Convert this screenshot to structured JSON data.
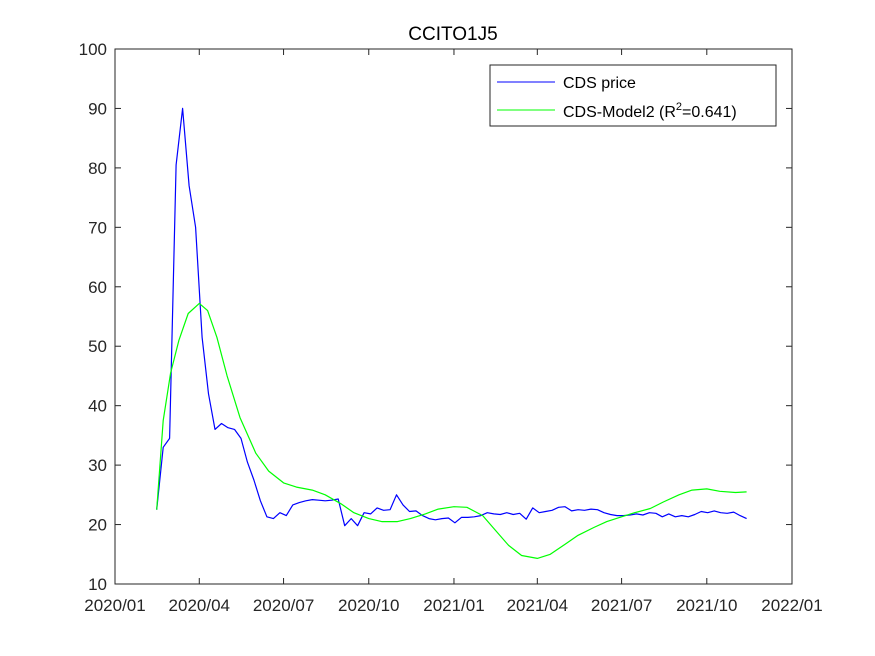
{
  "chart_data": {
    "type": "line",
    "title": "CCITO1J5",
    "xlabel": "",
    "ylabel": "",
    "xlim": [
      "2020-01-01",
      "2022-01-01"
    ],
    "ylim": [
      10,
      100
    ],
    "yticks": [
      10,
      20,
      30,
      40,
      50,
      60,
      70,
      80,
      90,
      100
    ],
    "xticks": [
      {
        "date": "2020-01-01",
        "label": "2020/01"
      },
      {
        "date": "2020-04-01",
        "label": "2020/04"
      },
      {
        "date": "2020-07-01",
        "label": "2020/07"
      },
      {
        "date": "2020-10-01",
        "label": "2020/10"
      },
      {
        "date": "2021-01-01",
        "label": "2021/01"
      },
      {
        "date": "2021-04-01",
        "label": "2021/04"
      },
      {
        "date": "2021-07-01",
        "label": "2021/07"
      },
      {
        "date": "2021-10-01",
        "label": "2021/10"
      },
      {
        "date": "2022-01-01",
        "label": "2022/01"
      }
    ],
    "grid": false,
    "legend_position": "top-right",
    "legend": {
      "entry1": "CDS price",
      "entry2_prefix": "CDS-Model2 (R",
      "entry2_sup": "2",
      "entry2_suffix": "=0.641)"
    },
    "series": [
      {
        "name": "CDS price",
        "color": "#0000ff",
        "points": [
          [
            "2020-02-15",
            22.5
          ],
          [
            "2020-02-22",
            33.0
          ],
          [
            "2020-02-29",
            34.5
          ],
          [
            "2020-03-07",
            80.5
          ],
          [
            "2020-03-14",
            90.0
          ],
          [
            "2020-03-21",
            77.0
          ],
          [
            "2020-03-28",
            70.0
          ],
          [
            "2020-04-04",
            51.5
          ],
          [
            "2020-04-11",
            42.0
          ],
          [
            "2020-04-18",
            36.0
          ],
          [
            "2020-04-25",
            37.0
          ],
          [
            "2020-05-02",
            36.3
          ],
          [
            "2020-05-09",
            36.0
          ],
          [
            "2020-05-16",
            34.5
          ],
          [
            "2020-05-23",
            30.5
          ],
          [
            "2020-05-30",
            27.5
          ],
          [
            "2020-06-06",
            24.0
          ],
          [
            "2020-06-13",
            21.3
          ],
          [
            "2020-06-20",
            21.0
          ],
          [
            "2020-06-27",
            22.0
          ],
          [
            "2020-07-04",
            21.5
          ],
          [
            "2020-07-11",
            23.3
          ],
          [
            "2020-07-18",
            23.7
          ],
          [
            "2020-07-25",
            24.0
          ],
          [
            "2020-08-01",
            24.2
          ],
          [
            "2020-08-08",
            24.1
          ],
          [
            "2020-08-15",
            24.0
          ],
          [
            "2020-08-22",
            24.1
          ],
          [
            "2020-08-29",
            24.3
          ],
          [
            "2020-09-05",
            19.8
          ],
          [
            "2020-09-12",
            21.0
          ],
          [
            "2020-09-19",
            19.8
          ],
          [
            "2020-09-26",
            22.0
          ],
          [
            "2020-10-03",
            21.8
          ],
          [
            "2020-10-10",
            22.8
          ],
          [
            "2020-10-17",
            22.4
          ],
          [
            "2020-10-24",
            22.5
          ],
          [
            "2020-10-31",
            25.0
          ],
          [
            "2020-11-07",
            23.3
          ],
          [
            "2020-11-14",
            22.2
          ],
          [
            "2020-11-21",
            22.3
          ],
          [
            "2020-11-28",
            21.5
          ],
          [
            "2020-12-05",
            21.0
          ],
          [
            "2020-12-12",
            20.8
          ],
          [
            "2020-12-19",
            21.0
          ],
          [
            "2020-12-26",
            21.1
          ],
          [
            "2021-01-02",
            20.3
          ],
          [
            "2021-01-09",
            21.2
          ],
          [
            "2021-01-16",
            21.2
          ],
          [
            "2021-01-23",
            21.3
          ],
          [
            "2021-01-30",
            21.5
          ],
          [
            "2021-02-06",
            22.0
          ],
          [
            "2021-02-13",
            21.8
          ],
          [
            "2021-02-20",
            21.7
          ],
          [
            "2021-02-27",
            22.0
          ],
          [
            "2021-03-06",
            21.7
          ],
          [
            "2021-03-13",
            21.9
          ],
          [
            "2021-03-20",
            20.9
          ],
          [
            "2021-03-27",
            22.8
          ],
          [
            "2021-04-03",
            22.0
          ],
          [
            "2021-04-10",
            22.2
          ],
          [
            "2021-04-17",
            22.4
          ],
          [
            "2021-04-24",
            22.9
          ],
          [
            "2021-05-01",
            23.0
          ],
          [
            "2021-05-08",
            22.3
          ],
          [
            "2021-05-15",
            22.5
          ],
          [
            "2021-05-22",
            22.4
          ],
          [
            "2021-05-29",
            22.6
          ],
          [
            "2021-06-05",
            22.5
          ],
          [
            "2021-06-12",
            22.0
          ],
          [
            "2021-06-19",
            21.7
          ],
          [
            "2021-06-26",
            21.5
          ],
          [
            "2021-07-03",
            21.5
          ],
          [
            "2021-07-10",
            21.6
          ],
          [
            "2021-07-17",
            21.8
          ],
          [
            "2021-07-24",
            21.6
          ],
          [
            "2021-07-31",
            22.0
          ],
          [
            "2021-08-07",
            21.9
          ],
          [
            "2021-08-14",
            21.3
          ],
          [
            "2021-08-21",
            21.8
          ],
          [
            "2021-08-28",
            21.3
          ],
          [
            "2021-09-04",
            21.5
          ],
          [
            "2021-09-11",
            21.3
          ],
          [
            "2021-09-18",
            21.7
          ],
          [
            "2021-09-25",
            22.2
          ],
          [
            "2021-10-02",
            22.0
          ],
          [
            "2021-10-09",
            22.3
          ],
          [
            "2021-10-16",
            22.0
          ],
          [
            "2021-10-23",
            21.9
          ],
          [
            "2021-10-30",
            22.1
          ],
          [
            "2021-11-06",
            21.5
          ],
          [
            "2021-11-13",
            21.0
          ]
        ]
      },
      {
        "name": "CDS-Model2 (R²=0.641)",
        "color": "#00ff00",
        "points": [
          [
            "2020-02-15",
            22.5
          ],
          [
            "2020-02-22",
            37.5
          ],
          [
            "2020-03-01",
            45.5
          ],
          [
            "2020-03-10",
            51.0
          ],
          [
            "2020-03-20",
            55.5
          ],
          [
            "2020-04-01",
            57.2
          ],
          [
            "2020-04-10",
            56.0
          ],
          [
            "2020-04-20",
            51.5
          ],
          [
            "2020-05-01",
            45.0
          ],
          [
            "2020-05-15",
            38.0
          ],
          [
            "2020-06-01",
            32.0
          ],
          [
            "2020-06-15",
            29.0
          ],
          [
            "2020-07-01",
            27.0
          ],
          [
            "2020-07-15",
            26.3
          ],
          [
            "2020-08-01",
            25.8
          ],
          [
            "2020-08-15",
            25.0
          ],
          [
            "2020-09-01",
            23.5
          ],
          [
            "2020-09-15",
            22.0
          ],
          [
            "2020-10-01",
            21.0
          ],
          [
            "2020-10-15",
            20.5
          ],
          [
            "2020-11-01",
            20.5
          ],
          [
            "2020-11-15",
            21.0
          ],
          [
            "2020-12-01",
            21.8
          ],
          [
            "2020-12-15",
            22.6
          ],
          [
            "2021-01-01",
            23.0
          ],
          [
            "2021-01-15",
            22.9
          ],
          [
            "2021-02-01",
            21.5
          ],
          [
            "2021-02-15",
            19.0
          ],
          [
            "2021-03-01",
            16.5
          ],
          [
            "2021-03-15",
            14.8
          ],
          [
            "2021-04-01",
            14.3
          ],
          [
            "2021-04-15",
            15.0
          ],
          [
            "2021-05-01",
            16.7
          ],
          [
            "2021-05-15",
            18.2
          ],
          [
            "2021-06-01",
            19.5
          ],
          [
            "2021-06-15",
            20.5
          ],
          [
            "2021-07-01",
            21.3
          ],
          [
            "2021-07-15",
            22.0
          ],
          [
            "2021-08-01",
            22.7
          ],
          [
            "2021-08-15",
            23.8
          ],
          [
            "2021-09-01",
            25.0
          ],
          [
            "2021-09-15",
            25.8
          ],
          [
            "2021-10-01",
            26.0
          ],
          [
            "2021-10-15",
            25.6
          ],
          [
            "2021-11-01",
            25.4
          ],
          [
            "2021-11-13",
            25.5
          ]
        ]
      }
    ]
  }
}
